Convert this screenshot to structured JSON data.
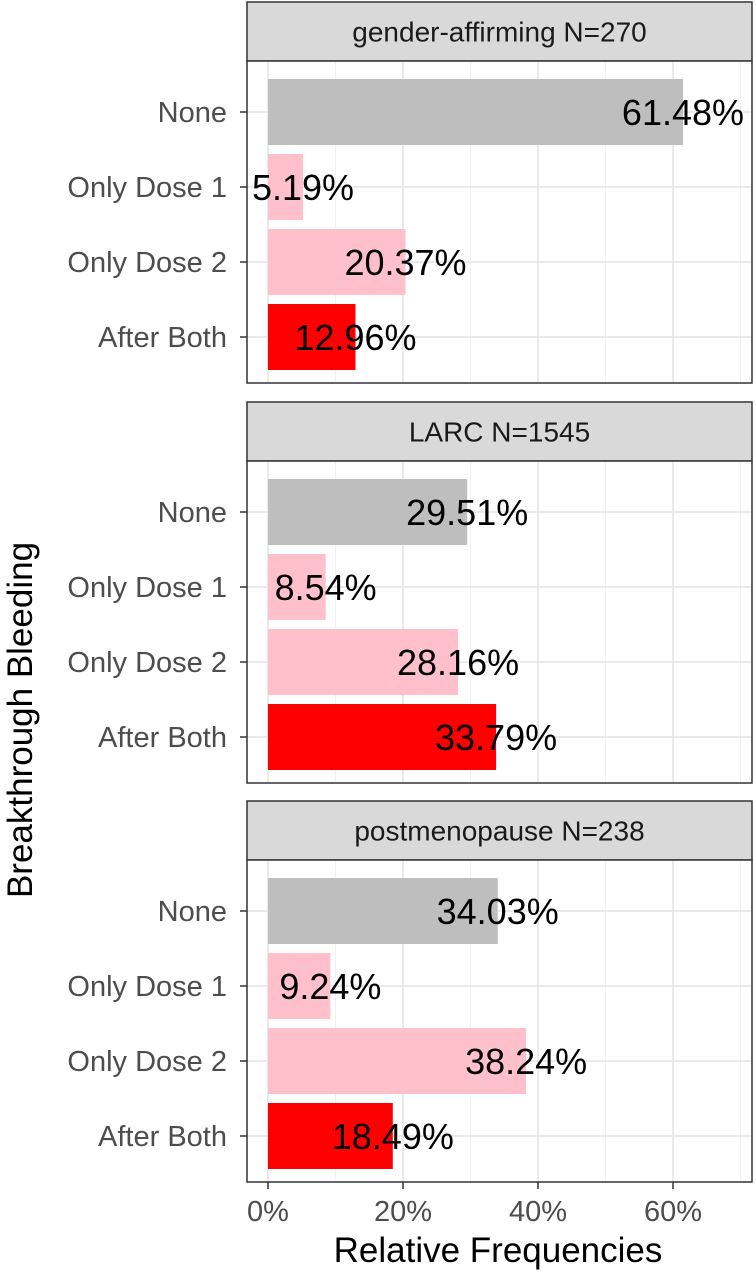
{
  "chart_data": {
    "type": "bar",
    "orientation": "horizontal",
    "ylabel": "Breakthrough Bleeding",
    "xlabel": "Relative Frequencies",
    "xlim": [
      0,
      72
    ],
    "x_ticks": [
      0,
      20,
      40,
      60
    ],
    "x_tick_labels": [
      "0%",
      "20%",
      "40%",
      "60%"
    ],
    "grid": true,
    "categories": [
      "None",
      "Only Dose 1",
      "Only Dose 2",
      "After Both"
    ],
    "category_colors": [
      "#bebebe",
      "#ffc0cb",
      "#ffc0cb",
      "#ff0000"
    ],
    "panels": [
      {
        "title": "gender-affirming N=270",
        "values": [
          61.48,
          5.19,
          20.37,
          12.96
        ],
        "labels": [
          "61.48%",
          "5.19%",
          "20.37%",
          "12.96%"
        ]
      },
      {
        "title": "LARC N=1545",
        "values": [
          29.51,
          8.54,
          28.16,
          33.79
        ],
        "labels": [
          "29.51%",
          "8.54%",
          "28.16%",
          "33.79%"
        ]
      },
      {
        "title": "postmenopause N=238",
        "values": [
          34.03,
          9.24,
          38.24,
          18.49
        ],
        "labels": [
          "34.03%",
          "9.24%",
          "38.24%",
          "18.49%"
        ]
      }
    ]
  }
}
